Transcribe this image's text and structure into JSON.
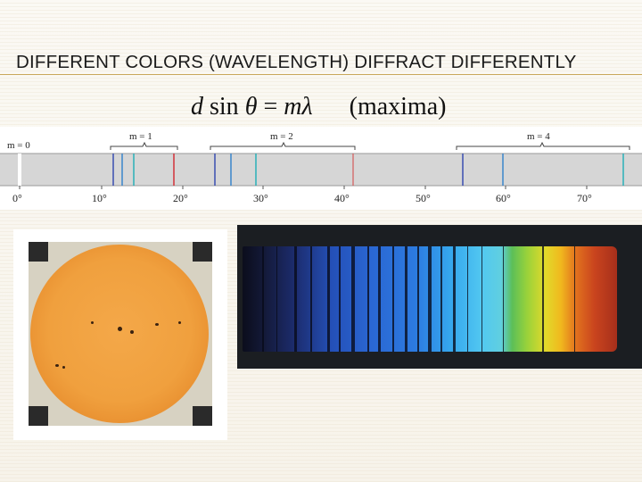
{
  "slide": {
    "title": "DIFFERENT COLORS (WAVELENGTH) DIFFRACT DIFFERENTLY",
    "formula": {
      "left_side": "d sin θ = mλ",
      "note": "(maxima)"
    }
  },
  "diffraction_scale": {
    "order_labels": [
      "m = 0",
      "m = 1",
      "m = 2",
      "m = 4"
    ],
    "degree_ticks": [
      "0°",
      "10°",
      "20°",
      "30°",
      "40°",
      "50°",
      "60°",
      "70°"
    ],
    "colors": {
      "violet": "#2b3f9e",
      "blue": "#3a78c8",
      "cyan": "#2aa6b8",
      "red": "#d2323a"
    }
  },
  "photos": {
    "sun": {
      "icon": "sun-photo"
    },
    "spectrum": {
      "icon": "solar-spectrum-photo"
    }
  }
}
